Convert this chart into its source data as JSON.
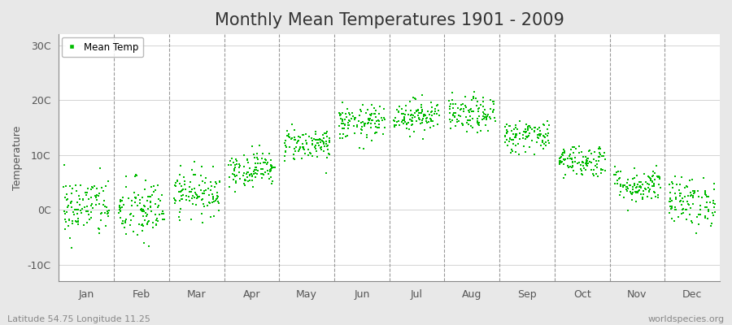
{
  "title": "Monthly Mean Temperatures 1901 - 2009",
  "ylabel": "Temperature",
  "yticks": [
    -10,
    0,
    10,
    20,
    30
  ],
  "ytick_labels": [
    "-10C",
    "0C",
    "10C",
    "20C",
    "30C"
  ],
  "ylim": [
    -13,
    32
  ],
  "xlabel_months": [
    "Jan",
    "Feb",
    "Mar",
    "Apr",
    "May",
    "Jun",
    "Jul",
    "Aug",
    "Sep",
    "Oct",
    "Nov",
    "Dec"
  ],
  "legend_label": "Mean Temp",
  "dot_color": "#00bb00",
  "dot_size": 2,
  "fig_bg_color": "#e8e8e8",
  "plot_bg_color": "#ffffff",
  "footer_left": "Latitude 54.75 Longitude 11.25",
  "footer_right": "worldspecies.org",
  "title_fontsize": 15,
  "axis_fontsize": 9,
  "footer_fontsize": 8,
  "monthly_means": [
    0.5,
    -0.2,
    3.2,
    7.5,
    12.0,
    15.8,
    17.2,
    17.3,
    13.5,
    9.0,
    4.5,
    1.5
  ],
  "monthly_stds": [
    2.8,
    3.0,
    2.0,
    1.6,
    1.5,
    1.6,
    1.5,
    1.6,
    1.5,
    1.5,
    1.6,
    2.2
  ],
  "n_years": 109,
  "seed": 42,
  "dashed_color": "#999999",
  "spine_color": "#888888"
}
